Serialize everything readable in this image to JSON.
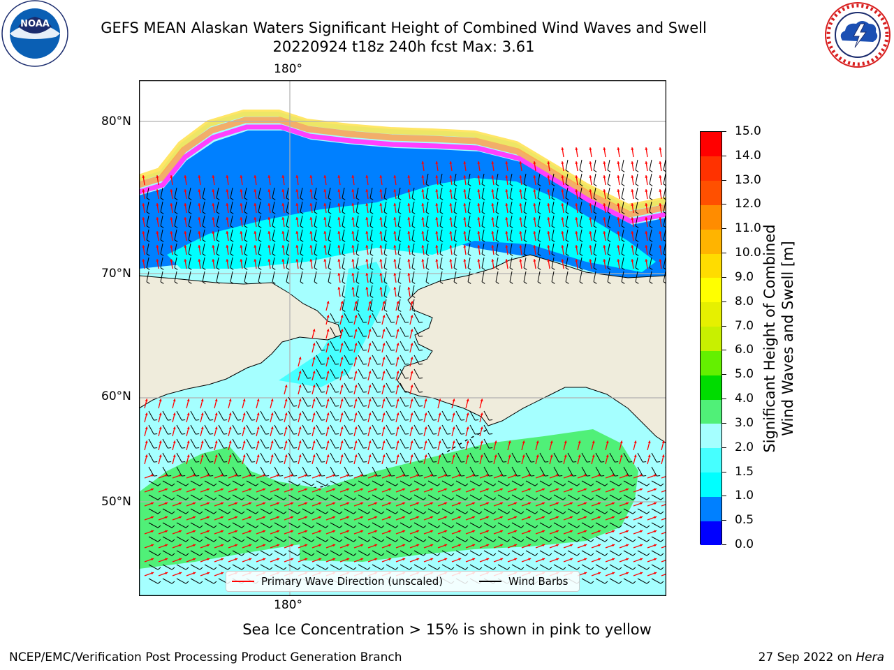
{
  "title": {
    "line1": "GEFS MEAN Alaskan Waters Significant Height of Combined Wind Waves and Swell",
    "line2": "20220924 t18z 240h fcst   Max: 3.61"
  },
  "logos": {
    "left": {
      "name": "NOAA",
      "ring_text": "NATIONAL OCEANIC AND ATMOSPHERIC ADMINISTRATION · U.S. DEPARTMENT OF COMMERCE",
      "center_text": "NOAA"
    },
    "right": {
      "name": "National Weather Service",
      "ring_text": "NATIONAL WEATHER SERVICE"
    }
  },
  "map": {
    "lon_label_top": "180°",
    "lon_label_bottom": "180°",
    "lat_labels": [
      "80°N",
      "70°N",
      "60°N",
      "50°N"
    ],
    "land_color": "#efecdc",
    "ocean_colors": {
      "light_cyan": "#a5ffff",
      "cyan": "#00ffff",
      "mid_cyan": "#46ffff",
      "blue": "#0080ff",
      "green": "#50f078"
    },
    "ice_colors": [
      "#ff40ff",
      "#ffa050",
      "#ffe040",
      "#ffff60"
    ]
  },
  "legend": {
    "items": [
      {
        "label": "Primary Wave Direction (unscaled)",
        "color": "#ff0000"
      },
      {
        "label": "Wind Barbs",
        "color": "#000000"
      }
    ]
  },
  "colorbar": {
    "ticks": [
      "0.0",
      "0.5",
      "1.0",
      "1.5",
      "2.0",
      "3.0",
      "4.0",
      "5.0",
      "6.0",
      "7.0",
      "8.0",
      "9.0",
      "10.0",
      "11.0",
      "12.0",
      "13.0",
      "14.0",
      "15.0"
    ],
    "colors": [
      "#0000ff",
      "#0080ff",
      "#00ffff",
      "#46ffff",
      "#a5ffff",
      "#50f078",
      "#00dc00",
      "#64f000",
      "#c8f000",
      "#e6f000",
      "#ffff00",
      "#ffdc00",
      "#ffb400",
      "#ff8c00",
      "#ff5000",
      "#ff3200",
      "#ff0000"
    ],
    "label_line1": "Significant Height of Combined",
    "label_line2": "Wind Waves and Swell [m]"
  },
  "note": "Sea Ice Concentration > 15% is shown in pink to yellow",
  "footer": {
    "left": "NCEP/EMC/Verification Post Processing Product Generation Branch",
    "right_date": "27 Sep 2022 on ",
    "right_host": "Hera"
  }
}
